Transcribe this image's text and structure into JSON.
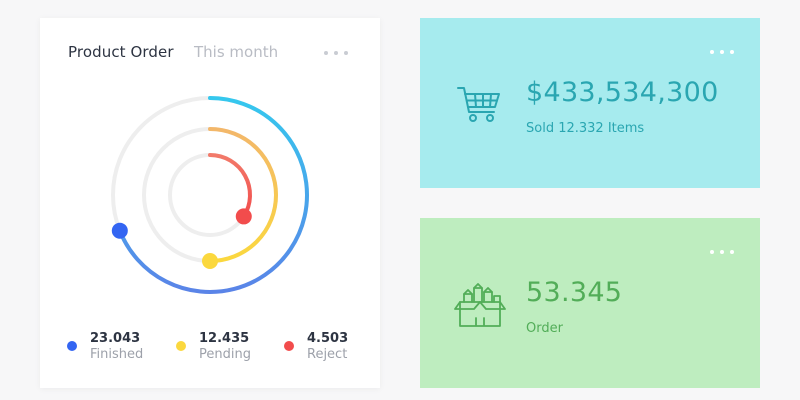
{
  "order_card": {
    "title": "Product Order",
    "period": "This month",
    "menu_icon": "more-horizontal-icon",
    "legend": [
      {
        "value": "23.043",
        "label": "Finished",
        "color": "#3365f2"
      },
      {
        "value": "12.435",
        "label": "Pending",
        "color": "#fbd83e"
      },
      {
        "value": "4.503",
        "label": "Reject",
        "color": "#f24c4c"
      }
    ]
  },
  "chart_data": {
    "type": "radial-progress",
    "series": [
      {
        "name": "Finished",
        "fraction": 0.69,
        "colors": [
          "#35c8ee",
          "#5a84e8"
        ]
      },
      {
        "name": "Pending",
        "fraction": 0.5,
        "colors": [
          "#f3b76a",
          "#fbd83e"
        ]
      },
      {
        "name": "Reject",
        "fraction": 0.34,
        "colors": [
          "#f27a6a",
          "#f24c4c"
        ]
      }
    ],
    "track_color": "#eeeeee"
  },
  "sold_card": {
    "icon": "shopping-cart-icon",
    "value": "$433,534,300",
    "caption": "Sold 12.332 Items",
    "background": "#a6ebee"
  },
  "orders_card": {
    "icon": "package-boxes-icon",
    "value": "53.345",
    "caption": "Order",
    "background": "#beedbf"
  }
}
